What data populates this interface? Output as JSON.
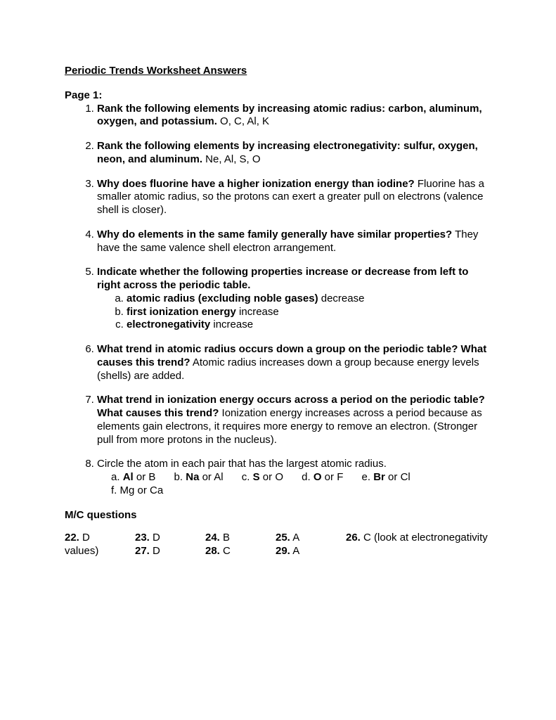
{
  "title": "Periodic Trends Worksheet Answers",
  "page_label": "Page 1:",
  "questions": [
    {
      "bold": "Rank the following elements by increasing atomic radius: carbon, aluminum, oxygen, and potassium.",
      "answer": " O, C, Al, K"
    },
    {
      "bold": "Rank the following elements by increasing electronegativity: sulfur, oxygen, neon, and aluminum.",
      "answer": " Ne, Al, S, O"
    },
    {
      "bold": "Why does fluorine have a higher ionization energy than iodine?",
      "answer": " Fluorine has a smaller atomic radius, so the protons can exert a greater pull on electrons (valence shell is closer)."
    },
    {
      "bold": "Why do elements in the same family generally have similar properties?",
      "answer": " They have the same valence shell electron arrangement."
    },
    {
      "bold": "Indicate whether the following properties increase or decrease from left to right across the periodic table.",
      "sub": [
        {
          "bold": "atomic radius (excluding noble gases)",
          "answer": " decrease"
        },
        {
          "bold": "first ionization energy",
          "answer": " increase"
        },
        {
          "bold": "electronegativity",
          "answer": " increase"
        }
      ]
    },
    {
      "bold": "What trend in atomic radius occurs down a group on the periodic table? What causes this trend?",
      "answer": " Atomic radius increases down a group because energy levels (shells) are added."
    },
    {
      "bold": "What trend in ionization energy occurs across a period on the periodic table? What causes this trend?",
      "answer": " Ionization energy increases across a period because as elements gain electrons, it requires more energy to remove an electron. (Stronger pull from more protons in the nucleus)."
    },
    {
      "plain": "Circle the atom in each pair that has the largest atomic radius.",
      "pairs_line": {
        "a": {
          "pre": "a. ",
          "bold": "Al",
          "post": " or B"
        },
        "b": {
          "pre": "b. ",
          "bold": "Na",
          "post": " or Al"
        },
        "c": {
          "pre": "c. ",
          "bold": "S",
          "post": " or O"
        },
        "d": {
          "pre": "d. ",
          "bold": "O",
          "post": " or F"
        },
        "e": {
          "pre": "e. ",
          "bold": "Br",
          "post": " or Cl"
        },
        "f": {
          "pre": "f. Mg or Ca",
          "bold": "",
          "post": ""
        }
      }
    }
  ],
  "mc_heading": "M/C questions",
  "mc": {
    "r1": {
      "c1": {
        "q": "22.",
        "a": " D"
      },
      "c2": {
        "q": "23.",
        "a": " D"
      },
      "c3": {
        "q": "24.",
        "a": " B"
      },
      "c4": {
        "q": "25.",
        "a": " A"
      },
      "c5": {
        "q": "26.",
        "a": " C  (look at electronegativity"
      }
    },
    "r2": {
      "c1": {
        "plain": "values)"
      },
      "c2": {
        "q": "27.",
        "a": " D"
      },
      "c3": {
        "q": "28.",
        "a": " C"
      },
      "c4": {
        "q": "29.",
        "a": " A"
      }
    }
  }
}
